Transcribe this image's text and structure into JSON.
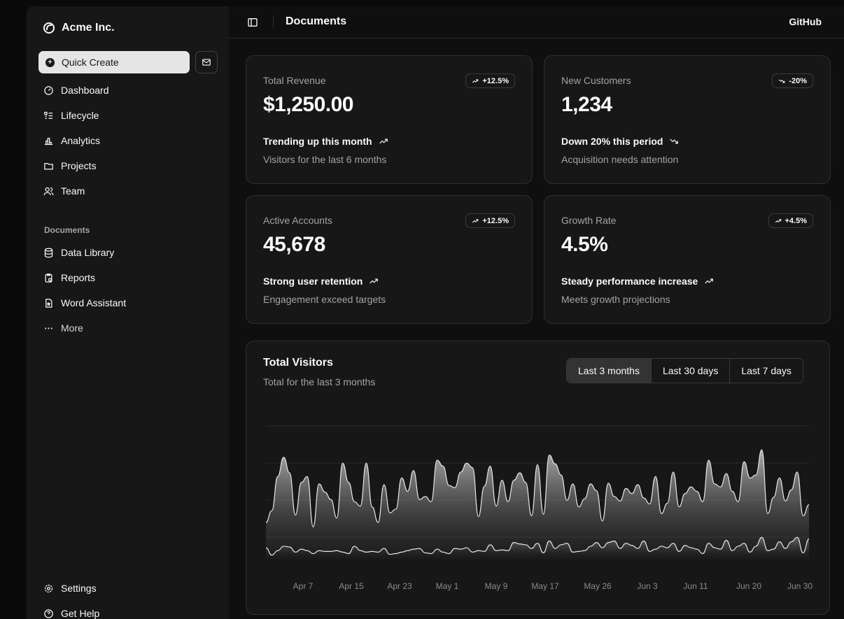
{
  "sidebar": {
    "brand": "Acme Inc.",
    "quick_create": "Quick Create",
    "nav": [
      "Dashboard",
      "Lifecycle",
      "Analytics",
      "Projects",
      "Team"
    ],
    "documents_label": "Documents",
    "documents": [
      "Data Library",
      "Reports",
      "Word Assistant",
      "More"
    ],
    "footer": [
      "Settings",
      "Get Help"
    ]
  },
  "header": {
    "title": "Documents",
    "github": "GitHub"
  },
  "cards": [
    {
      "label": "Total Revenue",
      "value": "$1,250.00",
      "badge": "+12.5%",
      "badge_dir": "up",
      "trend": "Trending up this month",
      "trend_dir": "up",
      "sub": "Visitors for the last 6 months"
    },
    {
      "label": "New Customers",
      "value": "1,234",
      "badge": "-20%",
      "badge_dir": "down",
      "trend": "Down 20% this period",
      "trend_dir": "down",
      "sub": "Acquisition needs attention"
    },
    {
      "label": "Active Accounts",
      "value": "45,678",
      "badge": "+12.5%",
      "badge_dir": "up",
      "trend": "Strong user retention",
      "trend_dir": "up",
      "sub": "Engagement exceed targets"
    },
    {
      "label": "Growth Rate",
      "value": "4.5%",
      "badge": "+4.5%",
      "badge_dir": "up",
      "trend": "Steady performance increase",
      "trend_dir": "up",
      "sub": "Meets growth projections"
    }
  ],
  "visitors": {
    "title": "Total Visitors",
    "subtitle": "Total for the last 3 months",
    "ranges": [
      "Last 3 months",
      "Last 30 days",
      "Last 7 days"
    ],
    "active_range": "Last 3 months"
  },
  "chart_data": {
    "type": "area",
    "stacked": true,
    "x_ticks": [
      "Apr 7",
      "Apr 15",
      "Apr 23",
      "May 1",
      "May 9",
      "May 17",
      "May 26",
      "Jun 3",
      "Jun 11",
      "Jun 20",
      "Jun 30"
    ],
    "ylim": [
      0,
      1000
    ],
    "grid": true,
    "series": [
      {
        "values": [
          80,
          30,
          60,
          90,
          85,
          50,
          70,
          60,
          40,
          60,
          55,
          55,
          60,
          50,
          40,
          90,
          60,
          50,
          55,
          50,
          75,
          35,
          40,
          50,
          60,
          70,
          75,
          45,
          40,
          70,
          50,
          40,
          75,
          70,
          80,
          50,
          60,
          55,
          100,
          60,
          65,
          60,
          115,
          105,
          100,
          75,
          110,
          45,
          125,
          75,
          100,
          110,
          50,
          55,
          60,
          90,
          115,
          80,
          115,
          125,
          75,
          110,
          95,
          75,
          125,
          55,
          70,
          90,
          80,
          110,
          55,
          95,
          80,
          70,
          40,
          110,
          80,
          70,
          130,
          60,
          90,
          110,
          50,
          90,
          150,
          60,
          70,
          120,
          75,
          120,
          150,
          45,
          140
        ]
      },
      {
        "values": [
          170,
          300,
          500,
          600,
          500,
          250,
          450,
          500,
          180,
          450,
          400,
          350,
          220,
          600,
          480,
          300,
          300,
          600,
          300,
          200,
          430,
          280,
          300,
          500,
          400,
          530,
          330,
          380,
          350,
          600,
          580,
          460,
          410,
          520,
          570,
          570,
          230,
          440,
          530,
          300,
          470,
          330,
          420,
          480,
          420,
          220,
          530,
          260,
          580,
          570,
          470,
          290,
          460,
          300,
          350,
          420,
          350,
          180,
          400,
          300,
          320,
          370,
          350,
          430,
          290,
          320,
          490,
          220,
          300,
          480,
          300,
          350,
          410,
          390,
          350,
          560,
          430,
          420,
          450,
          400,
          300,
          550,
          500,
          480,
          590,
          250,
          350,
          430,
          320,
          350,
          440,
          250,
          230
        ]
      }
    ]
  }
}
